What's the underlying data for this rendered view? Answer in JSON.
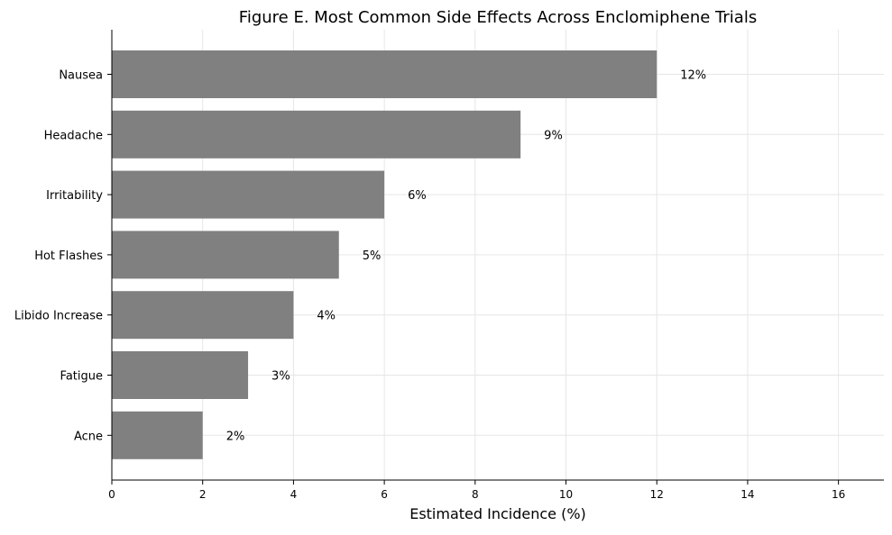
{
  "chart_data": {
    "type": "bar",
    "orientation": "horizontal",
    "title": "Figure E. Most Common Side Effects Across Enclomiphene Trials",
    "xlabel": "Estimated Incidence (%)",
    "ylabel": "",
    "categories": [
      "Nausea",
      "Headache",
      "Irritability",
      "Hot Flashes",
      "Libido Increase",
      "Fatigue",
      "Acne"
    ],
    "values": [
      12,
      9,
      6,
      5,
      4,
      3,
      2
    ],
    "data_labels": [
      "12%",
      "9%",
      "6%",
      "5%",
      "4%",
      "3%",
      "2%"
    ],
    "xlim": [
      0,
      17
    ],
    "xticks": [
      0,
      2,
      4,
      6,
      8,
      10,
      12,
      14,
      16
    ],
    "xtick_labels": [
      "0",
      "2",
      "4",
      "6",
      "8",
      "10",
      "12",
      "14",
      "16"
    ],
    "grid": true,
    "legend": "none",
    "bar_color": "#808080",
    "grid_color": "#e6e6e6"
  }
}
